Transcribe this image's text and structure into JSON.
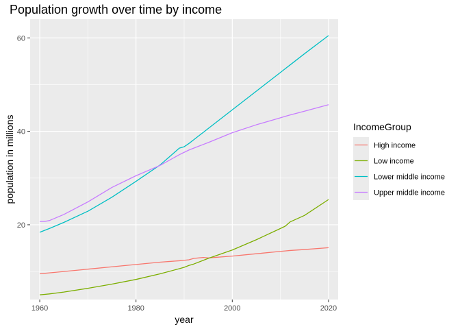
{
  "chart_data": {
    "type": "line",
    "title": "Population growth over time by income",
    "xlabel": "year",
    "ylabel": "population in millions",
    "xlim": [
      1958,
      2022
    ],
    "ylim": [
      4,
      64
    ],
    "x_ticks": [
      1960,
      1980,
      2000,
      2020
    ],
    "y_ticks": [
      20,
      40,
      60
    ],
    "grid": true,
    "legend": {
      "title": "IncomeGroup",
      "placement": "right"
    },
    "x": [
      1960,
      1961,
      1962,
      1965,
      1970,
      1975,
      1980,
      1985,
      1989,
      1990,
      1991,
      1992,
      1993,
      1994,
      1995,
      2000,
      2005,
      2010,
      2011,
      2012,
      2015,
      2020
    ],
    "series": [
      {
        "name": "High income",
        "color": "#F8766D",
        "values": [
          9.5,
          9.6,
          9.7,
          10.0,
          10.5,
          11.0,
          11.5,
          12.0,
          12.3,
          12.4,
          12.5,
          12.8,
          12.9,
          13.0,
          12.9,
          13.3,
          13.8,
          14.3,
          14.4,
          14.5,
          14.7,
          15.1
        ]
      },
      {
        "name": "Low income",
        "color": "#7CAE00",
        "values": [
          5.0,
          5.1,
          5.2,
          5.6,
          6.4,
          7.3,
          8.3,
          9.5,
          10.6,
          10.9,
          11.3,
          11.6,
          12.0,
          12.4,
          12.8,
          14.6,
          16.8,
          19.2,
          19.7,
          20.6,
          22.0,
          25.4
        ]
      },
      {
        "name": "Lower middle income",
        "color": "#00BFC4",
        "values": [
          18.4,
          18.8,
          19.2,
          20.5,
          22.9,
          25.9,
          29.3,
          32.8,
          36.4,
          36.7,
          37.4,
          38.2,
          39.0,
          39.8,
          40.6,
          44.6,
          48.6,
          52.6,
          53.4,
          54.2,
          56.6,
          60.5
        ]
      },
      {
        "name": "Upper middle income",
        "color": "#C77CFF",
        "values": [
          20.7,
          20.7,
          20.9,
          22.2,
          24.9,
          28.0,
          30.5,
          32.7,
          35.0,
          35.5,
          36.0,
          36.4,
          36.8,
          37.2,
          37.6,
          39.7,
          41.4,
          42.9,
          43.2,
          43.5,
          44.3,
          45.7
        ]
      }
    ]
  }
}
